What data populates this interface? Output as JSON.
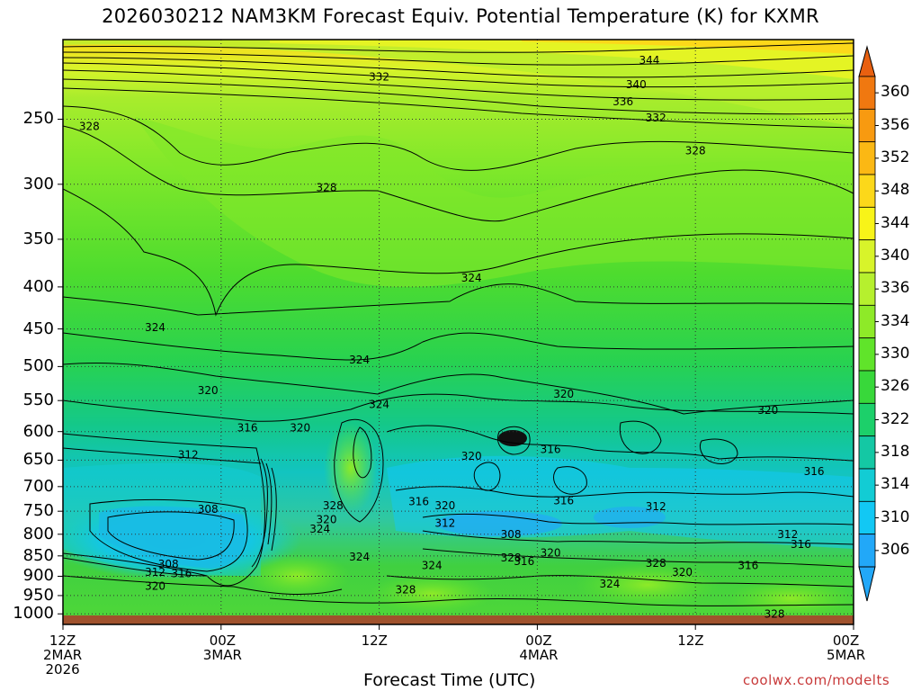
{
  "title": "2026030212 NAM3KM Forecast Equiv. Potential Temperature (K) for KXMR",
  "credit": "coolwx.com/modelts",
  "chart_data": {
    "type": "heatmap",
    "title": "2026030212 NAM3KM Forecast Equiv. Potential Temperature (K) for KXMR",
    "xlabel": "Forecast Time (UTC)",
    "ylabel": "",
    "x_range_hours": [
      0,
      60
    ],
    "x_ticks": [
      {
        "hour": 0,
        "lines": [
          "12Z",
          "2MAR",
          "2026"
        ]
      },
      {
        "hour": 12,
        "lines": [
          "00Z",
          "3MAR"
        ]
      },
      {
        "hour": 24,
        "lines": [
          "12Z"
        ]
      },
      {
        "hour": 36,
        "lines": [
          "00Z",
          "4MAR"
        ]
      },
      {
        "hour": 48,
        "lines": [
          "12Z"
        ]
      },
      {
        "hour": 60,
        "lines": [
          "00Z",
          "5MAR"
        ]
      }
    ],
    "y_axis": "pressure (hPa), log scale, inverted",
    "y_range": [
      1030,
      200
    ],
    "y_ticks": [
      "250",
      "300",
      "350",
      "400",
      "450",
      "500",
      "550",
      "600",
      "650",
      "700",
      "750",
      "800",
      "850",
      "900",
      "950",
      "1000"
    ],
    "grid": true,
    "colorbar": {
      "label": "Equiv. Potential Temperature (K)",
      "ticks": [
        "360",
        "356",
        "352",
        "348",
        "344",
        "340",
        "336",
        "334",
        "330",
        "326",
        "322",
        "318",
        "314",
        "310",
        "306"
      ],
      "colors": [
        "#f07810",
        "#f89a10",
        "#fbb814",
        "#fcd81a",
        "#f8f418",
        "#d8f42a",
        "#b6f02e",
        "#8eea28",
        "#60e42a",
        "#38d83a",
        "#1cd06a",
        "#14c8a4",
        "#12ccd4",
        "#12c8f4",
        "#22a8f8"
      ]
    },
    "contour_labels": [
      {
        "hour": 44.5,
        "p": 212,
        "value": "344"
      },
      {
        "hour": 43.5,
        "p": 227,
        "value": "340"
      },
      {
        "hour": 42.5,
        "p": 238,
        "value": "336"
      },
      {
        "hour": 45,
        "p": 249,
        "value": "332"
      },
      {
        "hour": 48,
        "p": 273,
        "value": "328"
      },
      {
        "hour": 24,
        "p": 222,
        "value": "332"
      },
      {
        "hour": 2,
        "p": 255,
        "value": "328"
      },
      {
        "hour": 20,
        "p": 303,
        "value": "328"
      },
      {
        "hour": 31,
        "p": 390,
        "value": "324"
      },
      {
        "hour": 7,
        "p": 448,
        "value": "324"
      },
      {
        "hour": 22.5,
        "p": 491,
        "value": "324"
      },
      {
        "hour": 11,
        "p": 535,
        "value": "320"
      },
      {
        "hour": 24,
        "p": 556,
        "value": "324"
      },
      {
        "hour": 38,
        "p": 540,
        "value": "320"
      },
      {
        "hour": 53.5,
        "p": 565,
        "value": "320"
      },
      {
        "hour": 14,
        "p": 594,
        "value": "316"
      },
      {
        "hour": 18,
        "p": 594,
        "value": "320"
      },
      {
        "hour": 9.5,
        "p": 640,
        "value": "312"
      },
      {
        "hour": 31,
        "p": 643,
        "value": "320"
      },
      {
        "hour": 37,
        "p": 631,
        "value": "316"
      },
      {
        "hour": 57,
        "p": 671,
        "value": "316"
      },
      {
        "hour": 11,
        "p": 746,
        "value": "308"
      },
      {
        "hour": 20.5,
        "p": 738,
        "value": "328"
      },
      {
        "hour": 20,
        "p": 768,
        "value": "320"
      },
      {
        "hour": 27,
        "p": 730,
        "value": "316"
      },
      {
        "hour": 29,
        "p": 738,
        "value": "320"
      },
      {
        "hour": 29,
        "p": 776,
        "value": "312"
      },
      {
        "hour": 34,
        "p": 800,
        "value": "308"
      },
      {
        "hour": 38,
        "p": 728,
        "value": "316"
      },
      {
        "hour": 45,
        "p": 740,
        "value": "312"
      },
      {
        "hour": 19.5,
        "p": 788,
        "value": "324"
      },
      {
        "hour": 55,
        "p": 800,
        "value": "312"
      },
      {
        "hour": 56,
        "p": 823,
        "value": "316"
      },
      {
        "hour": 8,
        "p": 870,
        "value": "308"
      },
      {
        "hour": 7,
        "p": 890,
        "value": "312"
      },
      {
        "hour": 9,
        "p": 893,
        "value": "316"
      },
      {
        "hour": 7,
        "p": 925,
        "value": "320"
      },
      {
        "hour": 22.5,
        "p": 853,
        "value": "324"
      },
      {
        "hour": 34,
        "p": 855,
        "value": "328"
      },
      {
        "hour": 35,
        "p": 863,
        "value": "316"
      },
      {
        "hour": 37,
        "p": 843,
        "value": "320"
      },
      {
        "hour": 28,
        "p": 873,
        "value": "324"
      },
      {
        "hour": 26,
        "p": 935,
        "value": "328"
      },
      {
        "hour": 45,
        "p": 868,
        "value": "328"
      },
      {
        "hour": 47,
        "p": 890,
        "value": "320"
      },
      {
        "hour": 52,
        "p": 873,
        "value": "316"
      },
      {
        "hour": 41.5,
        "p": 920,
        "value": "324"
      },
      {
        "hour": 54,
        "p": 1000,
        "value": "328"
      }
    ]
  }
}
